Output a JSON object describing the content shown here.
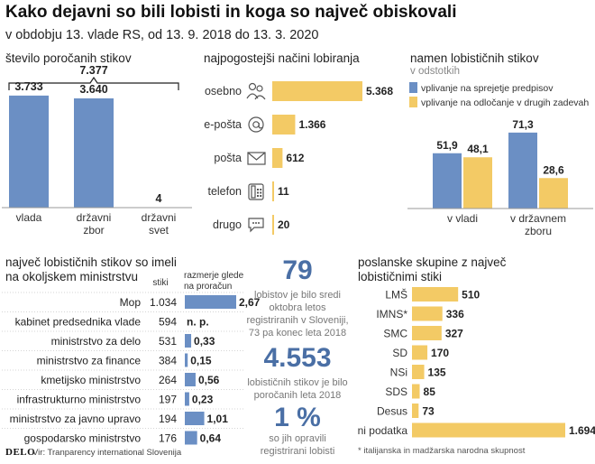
{
  "header": {
    "title": "Kako dejavni so bili lobisti in koga so največ obiskovali",
    "subtitle": "v obdobju 13. vlade RS, od 13. 9. 2018 do 13. 3. 2020"
  },
  "colors": {
    "blue": "#6b8fc4",
    "yellow": "#f3ca65",
    "accent": "#4a6fa5"
  },
  "reported_contacts": {
    "title": "število poročanih stikov",
    "bracket_total": "7.377"
  },
  "methods": {
    "title": "najpogostejši načini lobiranja"
  },
  "purpose": {
    "title": "namen lobističnih stikov",
    "unit": "v odstotkih"
  },
  "ministries": {
    "title_line1": "največ lobističnih stikov so imeli",
    "title_line2": "na okoljskem ministrstvu",
    "col_contacts": "stiki",
    "col_ratio_line1": "razmerje glede",
    "col_ratio_line2": "na proračun"
  },
  "facts": [
    {
      "number": "79",
      "text": [
        "lobistov je bilo sredi",
        "oktobra letos",
        "registriranih v Sloveniji,",
        "73 pa konec leta 2018"
      ]
    },
    {
      "number": "4.553",
      "text": [
        "lobističnih stikov je bilo",
        "poročanih leta 2018"
      ]
    },
    {
      "number": "1 %",
      "text": [
        "so jih opravili",
        "registrirani lobisti"
      ]
    }
  ],
  "parties": {
    "title_line1": "poslanske skupine z največ",
    "title_line2": "lobističnimi stiki"
  },
  "footnote": "* italijanska in madžarska narodna skupnost",
  "footer": {
    "brand": "DELO",
    "source": "Vir: Tranparency international Slovenija"
  },
  "chart_data": [
    {
      "type": "bar",
      "categories": [
        "vlada",
        "državni zbor",
        "državni svet"
      ],
      "values": [
        3733,
        3640,
        4
      ],
      "labels": [
        "3.733",
        "3.640",
        "4"
      ],
      "title": "število poročanih stikov"
    },
    {
      "type": "bar",
      "orientation": "horizontal",
      "categories": [
        "osebno",
        "e-pošta",
        "pošta",
        "telefon",
        "drugo"
      ],
      "icons": [
        "people-icon",
        "at-sign-icon",
        "envelope-icon",
        "phone-icon",
        "speech-bubble-icon"
      ],
      "values": [
        5368,
        1366,
        612,
        11,
        20
      ],
      "labels": [
        "5.368",
        "1.366",
        "612",
        "11",
        "20"
      ],
      "title": "najpogostejši načini lobiranja"
    },
    {
      "type": "bar",
      "categories": [
        "v vladi",
        "v državnem zboru"
      ],
      "series": [
        {
          "name": "vplivanje na sprejetje predpisov",
          "values": [
            51.9,
            71.3
          ],
          "labels": [
            "51,9",
            "71,3"
          ]
        },
        {
          "name": "vplivanje na odločanje v drugih zadevah",
          "values": [
            48.1,
            28.6
          ],
          "labels": [
            "48,1",
            "28,6"
          ]
        }
      ],
      "title": "namen lobističnih stikov",
      "legend": "top"
    },
    {
      "type": "table",
      "rows": [
        {
          "name": "Mop",
          "contacts": "1.034",
          "ratio": 2.67,
          "ratio_label": "2,67"
        },
        {
          "name": "kabinet predsednika vlade",
          "contacts": "594",
          "ratio": null,
          "ratio_label": "n. p."
        },
        {
          "name": "ministrstvo za delo",
          "contacts": "531",
          "ratio": 0.33,
          "ratio_label": "0,33"
        },
        {
          "name": "ministrstvo za finance",
          "contacts": "384",
          "ratio": 0.15,
          "ratio_label": "0,15"
        },
        {
          "name": "kmetijsko ministrstvo",
          "contacts": "264",
          "ratio": 0.56,
          "ratio_label": "0,56"
        },
        {
          "name": "infrastrukturno ministrstvo",
          "contacts": "197",
          "ratio": 0.23,
          "ratio_label": "0,23"
        },
        {
          "name": "ministrstvo za javno upravo",
          "contacts": "194",
          "ratio": 1.01,
          "ratio_label": "1,01"
        },
        {
          "name": "gospodarsko ministrstvo",
          "contacts": "176",
          "ratio": 0.64,
          "ratio_label": "0,64"
        }
      ]
    },
    {
      "type": "bar",
      "orientation": "horizontal",
      "categories": [
        "LMŠ",
        "IMNS*",
        "SMC",
        "SD",
        "NSi",
        "SDS",
        "Desus",
        "ni podatka"
      ],
      "values": [
        510,
        336,
        327,
        170,
        135,
        85,
        73,
        1694
      ],
      "labels": [
        "510",
        "336",
        "327",
        "170",
        "135",
        "85",
        "73",
        "1.694"
      ],
      "title": "poslanske skupine z največ lobističnimi stiki"
    }
  ]
}
